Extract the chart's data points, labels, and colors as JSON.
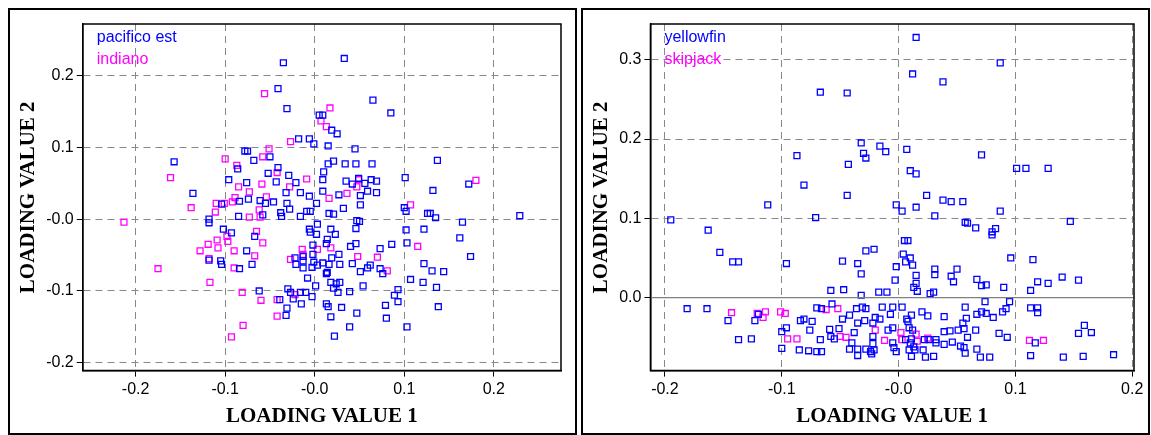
{
  "chart_data": [
    {
      "type": "scatter",
      "xlabel": "LOADING VALUE 1",
      "ylabel": "LOADING VALUE 2",
      "xlim": [
        -0.259,
        0.275
      ],
      "ylim": [
        -0.211,
        0.272
      ],
      "xticks": [
        -0.2,
        -0.1,
        {
          "value": 0,
          "label": "-0.0"
        },
        0.1,
        0.2
      ],
      "yticks": [
        -0.2,
        -0.1,
        {
          "value": 0,
          "label": "-0.0"
        },
        0.1,
        0.2
      ],
      "grid": true,
      "legend": "top left",
      "marker": "square",
      "series": [
        {
          "name": "pacifico est",
          "color": "#0000ff",
          "x": [
            -0.035,
            0.033,
            -0.041,
            -0.031,
            0.065,
            0.085,
            0.005,
            0.009,
            0.019,
            0.025,
            -0.018,
            -0.006,
            -0.001,
            0.015,
            0.045,
            -0.078,
            -0.075,
            -0.05,
            -0.068,
            -0.157,
            0.137,
            0.021,
            0.015,
            0.034,
            0.046,
            0.064,
            -0.041,
            -0.086,
            0.01,
            -0.052,
            -0.029,
            0.101,
            0.009,
            -0.096,
            0.063,
            0.069,
            0.035,
            0.042,
            -0.076,
            -0.043,
            -0.021,
            0.056,
            0.172,
            0.049,
            0.132,
            0.009,
            -0.032,
            -0.016,
            0.027,
            0.051,
            0.059,
            0.069,
            -0.136,
            -0.006,
            -0.074,
            -0.084,
            -0.061,
            -0.046,
            -0.055,
            -0.031,
            0.002,
            -0.104,
            0.051,
            0.032,
            0.1,
            -0.028,
            0.102,
            -0.009,
            -0.005,
            -0.038,
            0.016,
            0.021,
            0.126,
            0.129,
            -0.058,
            -0.037,
            -0.016,
            -0.085,
            0.135,
            0.229,
            -0.118,
            -0.118,
            0.047,
            0.05,
            0.165,
            0.003,
            -0.102,
            -0.093,
            -0.006,
            -0.005,
            0.018,
            0.046,
            0.102,
            0.122,
            -0.067,
            0.002,
            0.023,
            0.162,
            0.014,
            -0.002,
            0.046,
            0.04,
            0.086,
            0.103,
            0.013,
            0.073,
            -0.076,
            -0.022,
            -0.013,
            -0.002,
            0.027,
            0.019,
            0.174,
            -0.118,
            -0.105,
            -0.013,
            -0.001,
            0.009,
            -0.104,
            -0.07,
            -0.021,
            0.016,
            0.028,
            0.042,
            0.122,
            0.062,
            -0.013,
            -0.003,
            0.003,
            0.059,
            0.073,
            0.131,
            0.144,
            0.051,
            0.076,
            0.014,
            0.013,
            -0.084,
            -0.008,
            0.107,
            0.018,
            0.024,
            0.028,
            0.121,
            0.054,
            0.001,
            0.021,
            0.136,
            -0.062,
            -0.03,
            -0.027,
            -0.016,
            -0.01,
            0.026,
            0.039,
            0.093,
            0.089,
            -0.003,
            -0.039,
            -0.024,
            0.093,
            -0.015,
            0.013,
            0.015,
            0.079,
            0.138,
            -0.031,
            0.03,
            0.047,
            -0.032,
            0.018,
            0.08,
            0.039,
            0.103,
            0.022
          ],
          "values": [
            0.218,
            0.224,
            0.182,
            0.154,
            0.166,
            0.148,
            0.145,
            0.145,
            0.124,
            0.119,
            0.112,
            0.112,
            0.105,
            0.102,
            0.098,
            0.095,
            0.095,
            0.087,
            0.082,
            0.08,
            0.082,
            0.081,
            0.077,
            0.077,
            0.077,
            0.077,
            0.072,
            0.07,
            0.066,
            0.064,
            0.061,
            0.058,
            0.055,
            0.055,
            0.055,
            0.053,
            0.053,
            0.049,
            0.051,
            0.052,
            0.051,
            0.05,
            0.049,
            0.057,
            0.04,
            0.039,
            0.037,
            0.037,
            0.034,
            0.033,
            0.039,
            0.037,
            0.036,
            0.032,
            0.028,
            0.025,
            0.026,
            0.024,
            0.022,
            0.022,
            0.022,
            0.021,
            0.02,
            0.015,
            0.016,
            0.014,
            0.011,
            0.011,
            0.011,
            0.009,
            0.008,
            0.007,
            0.008,
            0.008,
            0.006,
            0.004,
            0.004,
            0.004,
            0.002,
            0.005,
            0,
            -0.005,
            -0.002,
            -0.003,
            -0.004,
            -0.007,
            -0.014,
            -0.019,
            -0.014,
            -0.018,
            -0.014,
            -0.013,
            -0.015,
            -0.014,
            -0.024,
            -0.021,
            -0.021,
            -0.026,
            -0.028,
            -0.036,
            -0.034,
            -0.038,
            -0.035,
            -0.033,
            -0.034,
            -0.041,
            -0.044,
            -0.054,
            -0.052,
            -0.049,
            -0.049,
            -0.054,
            -0.052,
            -0.057,
            -0.058,
            -0.058,
            -0.06,
            -0.061,
            -0.063,
            -0.063,
            -0.063,
            -0.063,
            -0.063,
            -0.062,
            -0.062,
            -0.064,
            -0.068,
            -0.067,
            -0.064,
            -0.068,
            -0.069,
            -0.072,
            -0.073,
            -0.073,
            -0.076,
            -0.074,
            -0.076,
            -0.069,
            -0.082,
            -0.084,
            -0.088,
            -0.09,
            -0.088,
            -0.088,
            -0.093,
            -0.093,
            -0.096,
            -0.095,
            -0.1,
            -0.097,
            -0.102,
            -0.102,
            -0.102,
            -0.102,
            -0.101,
            -0.098,
            -0.106,
            -0.108,
            -0.112,
            -0.111,
            -0.115,
            -0.118,
            -0.118,
            -0.122,
            -0.12,
            -0.122,
            -0.124,
            -0.123,
            -0.131,
            -0.134,
            -0.136,
            -0.138,
            -0.15,
            -0.15,
            -0.163
          ]
        },
        {
          "name": "indiano",
          "color": "#ff00ff",
          "x": [
            -0.056,
            0.017,
            0.007,
            0.013,
            -0.027,
            -0.051,
            -0.058,
            -0.1,
            -0.087,
            -0.042,
            -0.161,
            -0.009,
            -0.059,
            0.049,
            0.18,
            0.047,
            -0.028,
            -0.085,
            0.036,
            -0.073,
            -0.054,
            -0.089,
            -0.092,
            0.016,
            -0.101,
            -0.11,
            -0.138,
            0.107,
            -0.111,
            -0.062,
            -0.073,
            -0.061,
            -0.213,
            -0.065,
            -0.098,
            -0.109,
            -0.097,
            -0.058,
            -0.119,
            0.115,
            -0.108,
            0.018,
            -0.128,
            -0.09,
            -0.014,
            0.003,
            -0.013,
            -0.067,
            0.048,
            0.07,
            -0.118,
            -0.027,
            -0.175,
            -0.09,
            0.081,
            -0.117,
            -0.081,
            -0.022,
            -0.042,
            -0.06,
            -0.042,
            -0.08,
            -0.093
          ],
          "values": [
            0.175,
            0.155,
            0.137,
            0.129,
            0.108,
            0.098,
            0.087,
            0.084,
            0.075,
            0.065,
            0.058,
            0.056,
            0.049,
            0.055,
            0.054,
            0.045,
            0.045,
            0.045,
            0.036,
            0.038,
            0.031,
            0.03,
            0.024,
            0.029,
            0.022,
            0.022,
            0.016,
            0.02,
            0.01,
            0.013,
            0.003,
            0.003,
            -0.004,
            -0.017,
            -0.024,
            -0.029,
            -0.031,
            -0.033,
            -0.035,
            -0.038,
            -0.04,
            -0.04,
            -0.044,
            -0.044,
            -0.042,
            -0.042,
            -0.049,
            -0.051,
            -0.052,
            -0.053,
            -0.055,
            -0.056,
            -0.069,
            -0.068,
            -0.072,
            -0.088,
            -0.102,
            -0.105,
            -0.112,
            -0.113,
            -0.135,
            -0.148,
            -0.164
          ]
        }
      ]
    },
    {
      "type": "scatter",
      "xlabel": "LOADING VALUE 1",
      "ylabel": "LOADING VALUE 2",
      "xlim": [
        -0.2124,
        0.2015
      ],
      "ylim": [
        -0.092,
        0.345
      ],
      "xticks": [
        -0.2,
        -0.1,
        {
          "value": 0,
          "label": "-0.0"
        },
        0.1,
        0.2
      ],
      "yticks": [
        {
          "value": 0,
          "label": "0.0"
        },
        0.1,
        0.2,
        0.3
      ],
      "grid": true,
      "legend": "top left",
      "marker": "square",
      "ref_lines": [
        {
          "axis": "y",
          "value": 0,
          "color": "#808080",
          "line_style": "solid"
        }
      ],
      "series": [
        {
          "name": "yellowfin",
          "color": "#0000ff",
          "x": [
            0.015,
            0.087,
            0.012,
            0.038,
            -0.067,
            -0.044,
            -0.032,
            -0.016,
            -0.03,
            -0.011,
            -0.028,
            -0.087,
            0.007,
            0.071,
            -0.043,
            0.101,
            0.109,
            0.128,
            0.01,
            0.015,
            -0.081,
            -0.044,
            0.024,
            0.038,
            0.045,
            0.055,
            -0.112,
            -0.002,
            0.003,
            0.015,
            0.087,
            -0.195,
            -0.071,
            0.031,
            0.057,
            0.059,
            0.066,
            0.147,
            0.08,
            0.083,
            0.08,
            -0.163,
            -0.153,
            -0.142,
            -0.137,
            -0.096,
            -0.048,
            -0.028,
            -0.021,
            0.005,
            0.008,
            0.004,
            0.01,
            0.006,
            0.012,
            -0.002,
            -0.035,
            -0.032,
            0.031,
            0.05,
            0.096,
            0.115,
            0.015,
            0.031,
            0.045,
            -0.003,
            0.067,
            0.14,
            0.154,
            0.119,
            0.128,
            0.015,
            0.013,
            0.047,
            0.071,
            0.075,
            0.09,
            0.113,
            -0.058,
            -0.047,
            -0.017,
            -0.01,
            -0.032,
            0.016,
            0.027,
            0.03,
            0.074,
            0.095,
            -0.181,
            -0.164,
            -0.146,
            -0.137,
            -0.126,
            -0.123,
            -0.12,
            -0.1,
            -0.1,
            -0.096,
            -0.085,
            -0.084,
            -0.081,
            -0.076,
            -0.077,
            -0.074,
            -0.07,
            -0.066,
            -0.07,
            -0.066,
            -0.067,
            -0.059,
            -0.058,
            -0.057,
            -0.055,
            -0.051,
            -0.048,
            -0.042,
            -0.042,
            -0.04,
            -0.038,
            -0.036,
            -0.035,
            -0.035,
            -0.035,
            -0.031,
            -0.028,
            -0.029,
            -0.028,
            -0.024,
            -0.023,
            -0.022,
            -0.022,
            -0.022,
            -0.021,
            -0.02,
            -0.016,
            -0.014,
            -0.009,
            -0.007,
            -0.005,
            -0.005,
            -0.005,
            -0.004,
            -0.002,
            0.003,
            0.006,
            0.007,
            0.008,
            0.009,
            0.009,
            0.01,
            0.011,
            0.011,
            0.012,
            0.011,
            0.013,
            0.014,
            0.02,
            0.021,
            0.022,
            0.023,
            0.025,
            0.026,
            0.03,
            0.032,
            0.032,
            0.039,
            0.039,
            0.039,
            0.044,
            0.046,
            0.051,
            0.053,
            0.055,
            0.056,
            0.056,
            0.057,
            0.058,
            0.057,
            0.059,
            0.066,
            0.067,
            0.067,
            0.07,
            0.071,
            0.075,
            0.078,
            0.081,
            0.086,
            0.089,
            0.092,
            0.093,
            0.113,
            0.113,
            0.117,
            0.119,
            0.119,
            0.141,
            0.154,
            0.159,
            0.158,
            0.165,
            0.184
          ],
          "values": [
            0.328,
            0.296,
            0.282,
            0.272,
            0.259,
            0.258,
            0.195,
            0.191,
            0.182,
            0.184,
            0.176,
            0.179,
            0.187,
            0.18,
            0.168,
            0.163,
            0.163,
            0.163,
            0.16,
            0.156,
            0.142,
            0.129,
            0.129,
            0.123,
            0.121,
            0.121,
            0.117,
            0.117,
            0.109,
            0.114,
            0.109,
            0.098,
            0.101,
            0.103,
            0.095,
            0.094,
            0.088,
            0.096,
            0.083,
            0.087,
            0.079,
            0.085,
            0.057,
            0.045,
            0.045,
            0.043,
            0.046,
            0.059,
            0.061,
            0.072,
            0.072,
            0.055,
            0.05,
            0.045,
            0.041,
            0.039,
            0.043,
            0.03,
            0.036,
            0.036,
            0.05,
            0.048,
            0.028,
            0.029,
            0.027,
            0.022,
            0.023,
            0.026,
            0.022,
            0.02,
            0.018,
            0.018,
            0.013,
            0.02,
            0.015,
            0.016,
            0.013,
            0.009,
            0.009,
            0.01,
            0.007,
            0.007,
            0.003,
            0.008,
            0.005,
            0.007,
            -0.005,
            -0.005,
            -0.014,
            -0.014,
            -0.029,
            -0.053,
            -0.052,
            -0.029,
            -0.021,
            -0.043,
            -0.064,
            -0.038,
            -0.066,
            -0.029,
            -0.027,
            -0.041,
            -0.067,
            -0.03,
            -0.068,
            -0.068,
            -0.013,
            -0.014,
            -0.053,
            -0.04,
            -0.049,
            -0.008,
            -0.052,
            -0.039,
            -0.027,
            -0.022,
            -0.065,
            -0.057,
            -0.044,
            -0.014,
            -0.032,
            -0.065,
            -0.073,
            -0.012,
            -0.014,
            -0.029,
            -0.065,
            -0.068,
            -0.071,
            -0.032,
            -0.049,
            -0.058,
            -0.066,
            -0.025,
            -0.027,
            -0.012,
            -0.041,
            -0.021,
            -0.012,
            -0.038,
            -0.057,
            -0.063,
            -0.068,
            -0.012,
            -0.053,
            -0.027,
            -0.03,
            -0.038,
            -0.066,
            -0.057,
            -0.022,
            -0.052,
            -0.041,
            -0.074,
            -0.062,
            -0.066,
            -0.018,
            -0.066,
            -0.053,
            -0.075,
            -0.023,
            -0.053,
            -0.074,
            -0.053,
            -0.057,
            -0.059,
            -0.024,
            -0.043,
            -0.042,
            -0.056,
            -0.041,
            -0.061,
            -0.032,
            -0.039,
            -0.063,
            -0.012,
            -0.026,
            -0.07,
            -0.05,
            -0.041,
            -0.021,
            -0.065,
            -0.075,
            -0.018,
            -0.02,
            -0.075,
            -0.025,
            -0.045,
            -0.018,
            -0.014,
            -0.05,
            -0.013,
            -0.073,
            -0.057,
            -0.013,
            -0.019,
            -0.075,
            -0.045,
            -0.035,
            -0.074,
            -0.044,
            -0.072
          ]
        },
        {
          "name": "skipjack",
          "color": "#ff00ff",
          "x": [
            -0.143,
            -0.121,
            -0.116,
            -0.114,
            -0.101,
            -0.097,
            -0.095,
            -0.087,
            -0.062,
            -0.052,
            -0.05,
            -0.045,
            -0.02,
            -0.012,
            0.002,
            0.003,
            0.015,
            0.016,
            0.025,
            0.112,
            0.124
          ],
          "values": [
            -0.019,
            -0.02,
            -0.025,
            -0.018,
            -0.018,
            -0.02,
            -0.052,
            -0.052,
            -0.015,
            -0.014,
            -0.049,
            -0.05,
            -0.041,
            -0.054,
            -0.044,
            -0.053,
            -0.046,
            -0.055,
            -0.051,
            -0.054,
            -0.054
          ]
        }
      ]
    }
  ]
}
